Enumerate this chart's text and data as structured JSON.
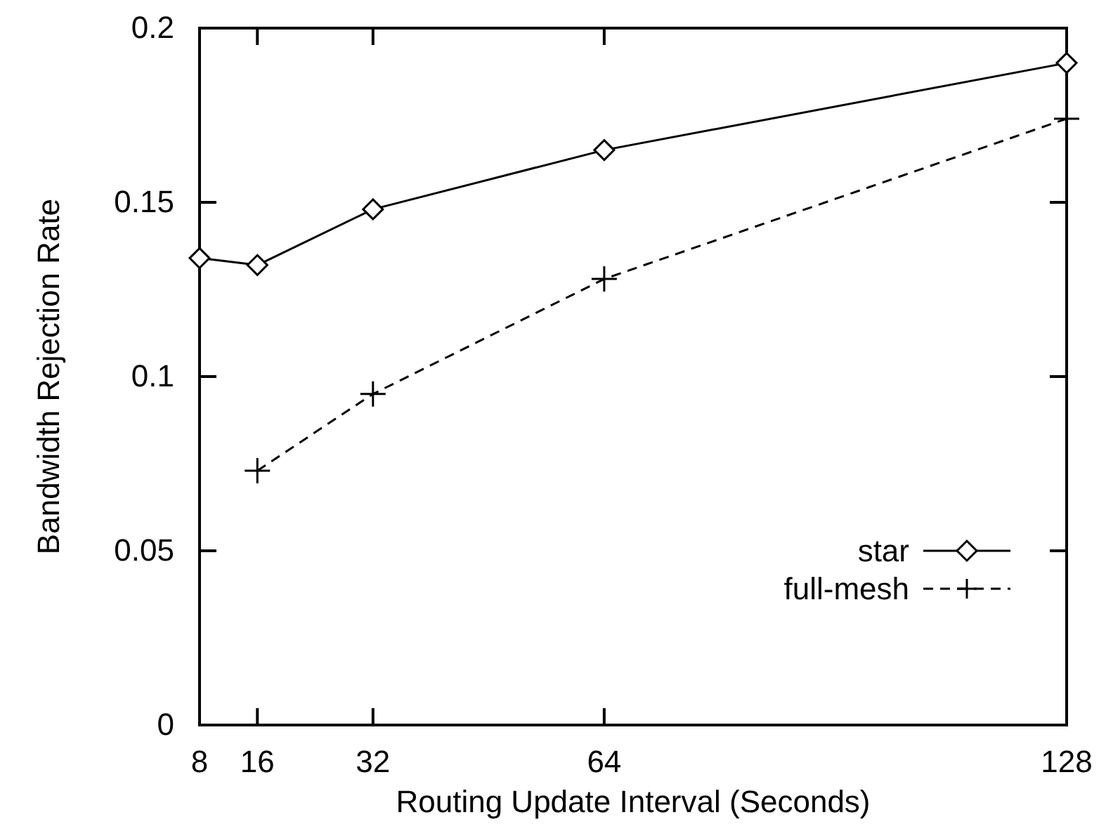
{
  "chart_data": {
    "type": "line",
    "xlabel": "Routing Update Interval (Seconds)",
    "ylabel": "Bandwidth Rejection Rate",
    "xlim": [
      8,
      128
    ],
    "xticks": [
      8,
      16,
      32,
      64,
      128
    ],
    "ylim": [
      0,
      0.2
    ],
    "yticks": [
      0,
      0.05,
      0.1,
      0.15,
      0.2
    ],
    "legend": "right",
    "grid": false,
    "series": [
      {
        "name": "star",
        "color": "#000000",
        "marker": "diamond",
        "line_style": "solid",
        "x": [
          8,
          16,
          32,
          64,
          128
        ],
        "values": [
          0.134,
          0.132,
          0.148,
          0.165,
          0.19
        ]
      },
      {
        "name": "full-mesh",
        "color": "#000000",
        "marker": "cross",
        "line_style": "dashed",
        "x": [
          16,
          32,
          64,
          128
        ],
        "values": [
          0.073,
          0.095,
          0.128,
          0.174
        ]
      }
    ]
  }
}
